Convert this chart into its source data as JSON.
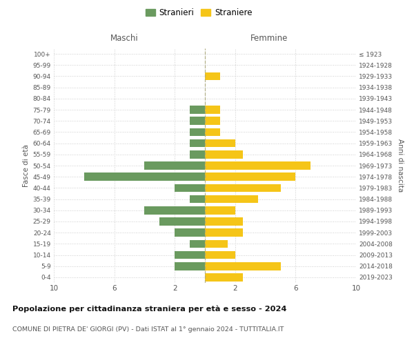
{
  "age_groups": [
    "0-4",
    "5-9",
    "10-14",
    "15-19",
    "20-24",
    "25-29",
    "30-34",
    "35-39",
    "40-44",
    "45-49",
    "50-54",
    "55-59",
    "60-64",
    "65-69",
    "70-74",
    "75-79",
    "80-84",
    "85-89",
    "90-94",
    "95-99",
    "100+"
  ],
  "birth_years": [
    "2019-2023",
    "2014-2018",
    "2009-2013",
    "2004-2008",
    "1999-2003",
    "1994-1998",
    "1989-1993",
    "1984-1988",
    "1979-1983",
    "1974-1978",
    "1969-1973",
    "1964-1968",
    "1959-1963",
    "1954-1958",
    "1949-1953",
    "1944-1948",
    "1939-1943",
    "1934-1938",
    "1929-1933",
    "1924-1928",
    "≤ 1923"
  ],
  "maschi": [
    0,
    2,
    2,
    1,
    2,
    3,
    4,
    1,
    2,
    8,
    4,
    1,
    1,
    1,
    1,
    1,
    0,
    0,
    0,
    0,
    0
  ],
  "femmine": [
    2.5,
    5,
    2,
    1.5,
    2.5,
    2.5,
    2,
    3.5,
    5,
    6,
    7,
    2.5,
    2,
    1,
    1,
    1,
    0,
    0,
    1,
    0,
    0
  ],
  "color_maschi": "#6a9a5f",
  "color_femmine": "#f5c518",
  "background_color": "#ffffff",
  "grid_color": "#cccccc",
  "title": "Popolazione per cittadinanza straniera per età e sesso - 2024",
  "subtitle": "COMUNE DI PIETRA DE' GIORGI (PV) - Dati ISTAT al 1° gennaio 2024 - TUTTITALIA.IT",
  "ylabel_left": "Fasce di età",
  "ylabel_right": "Anni di nascita",
  "header_left": "Maschi",
  "header_right": "Femmine",
  "legend_stranieri": "Stranieri",
  "legend_straniere": "Straniere"
}
